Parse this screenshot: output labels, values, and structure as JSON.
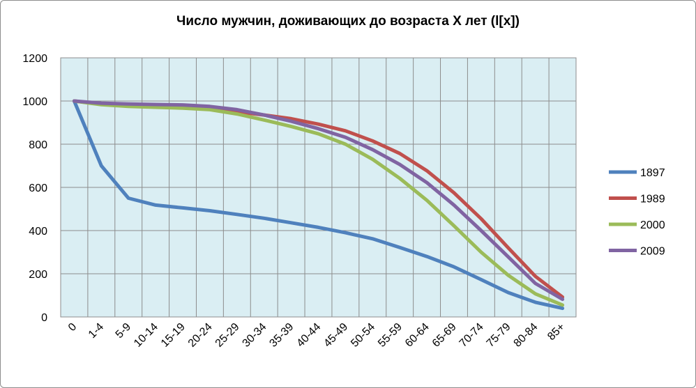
{
  "chart_data": {
    "type": "line",
    "title": "Число мужчин, доживающих до возраста  X лет (l[x])",
    "xlabel": "",
    "ylabel": "",
    "ylim": [
      0,
      1200
    ],
    "yticks": [
      0,
      200,
      400,
      600,
      800,
      1000,
      1200
    ],
    "grid": true,
    "legend_position": "right",
    "categories": [
      "0",
      "1-4",
      "5-9",
      "10-14",
      "15-19",
      "20-24",
      "25-29",
      "30-34",
      "35-39",
      "40-44",
      "45-49",
      "50-54",
      "55-59",
      "60-64",
      "65-69",
      "70-74",
      "75-79",
      "80-84",
      "85+"
    ],
    "series": [
      {
        "name": "1897",
        "color": "#4f81bd",
        "values": [
          1000,
          700,
          550,
          518,
          505,
          492,
          475,
          457,
          436,
          415,
          390,
          362,
          322,
          280,
          232,
          173,
          113,
          68,
          40
        ]
      },
      {
        "name": "1989",
        "color": "#c0504d",
        "values": [
          1000,
          985,
          977,
          974,
          970,
          963,
          950,
          935,
          918,
          893,
          862,
          815,
          757,
          677,
          575,
          455,
          320,
          188,
          92
        ]
      },
      {
        "name": "2000",
        "color": "#9bbb59",
        "values": [
          1000,
          983,
          975,
          971,
          967,
          960,
          940,
          912,
          882,
          848,
          800,
          730,
          642,
          540,
          422,
          300,
          193,
          107,
          55
        ]
      },
      {
        "name": "2009",
        "color": "#8064a2",
        "values": [
          1000,
          990,
          986,
          984,
          982,
          975,
          960,
          935,
          906,
          872,
          832,
          775,
          706,
          622,
          518,
          400,
          278,
          155,
          82
        ]
      }
    ]
  }
}
